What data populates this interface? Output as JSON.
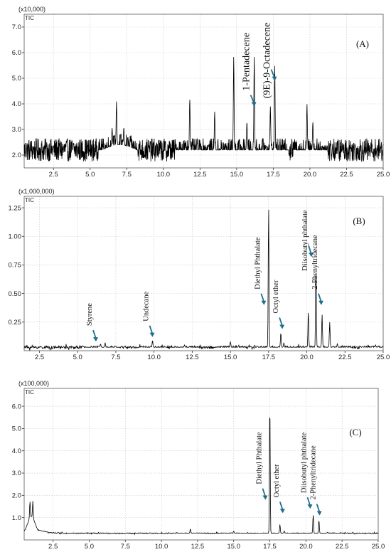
{
  "chart_data": [
    {
      "type": "line",
      "panel_label": "(A)",
      "multiplier": "(x10,000)",
      "series_label": "TIC",
      "xlim": [
        0.5,
        25.0
      ],
      "ylim": [
        1.5,
        7.5
      ],
      "x_ticks": [
        "2.5",
        "5.0",
        "7.5",
        "10.0",
        "12.5",
        "15.0",
        "17.5",
        "20.0",
        "22.5",
        "25.0"
      ],
      "y_ticks": [
        "2.0",
        "3.0",
        "4.0",
        "5.0",
        "6.0",
        "7.0"
      ],
      "baseline": 2.2,
      "noise": 0.45,
      "peaks": [
        {
          "x": 6.5,
          "y": 2.9
        },
        {
          "x": 6.8,
          "y": 3.9
        },
        {
          "x": 7.3,
          "y": 2.9
        },
        {
          "x": 11.8,
          "y": 4.2
        },
        {
          "x": 13.5,
          "y": 3.7
        },
        {
          "x": 14.8,
          "y": 5.85
        },
        {
          "x": 15.7,
          "y": 3.3
        },
        {
          "x": 16.2,
          "y": 5.85
        },
        {
          "x": 17.3,
          "y": 3.9
        },
        {
          "x": 17.6,
          "y": 5.5
        },
        {
          "x": 19.8,
          "y": 4.0
        },
        {
          "x": 20.2,
          "y": 3.3
        }
      ],
      "annotations": [
        {
          "text": "1-Pentadecene",
          "x": 16.2,
          "arrow_y": 3.9
        },
        {
          "text": "(9E)-9-Octadecene",
          "x": 17.6,
          "arrow_y": 4.9
        }
      ]
    },
    {
      "type": "line",
      "panel_label": "(B)",
      "multiplier": "(x1,000,000)",
      "series_label": "TIC",
      "xlim": [
        1.5,
        25.0
      ],
      "ylim": [
        0,
        1.35
      ],
      "x_ticks": [
        "2.5",
        "5.0",
        "7.5",
        "10.0",
        "12.5",
        "15.0",
        "17.5",
        "20.0",
        "22.5",
        "25.0"
      ],
      "y_ticks": [
        "0.25",
        "0.50",
        "0.75",
        "1.00",
        "1.25"
      ],
      "baseline": 0.03,
      "noise": 0.012,
      "peaks": [
        {
          "x": 6.5,
          "y": 0.06
        },
        {
          "x": 6.8,
          "y": 0.07
        },
        {
          "x": 9.9,
          "y": 0.09
        },
        {
          "x": 12.0,
          "y": 0.05
        },
        {
          "x": 15.0,
          "y": 0.08
        },
        {
          "x": 17.5,
          "y": 1.27
        },
        {
          "x": 18.3,
          "y": 0.16
        },
        {
          "x": 18.5,
          "y": 0.07
        },
        {
          "x": 20.1,
          "y": 0.35
        },
        {
          "x": 20.6,
          "y": 0.74
        },
        {
          "x": 21.0,
          "y": 0.32
        },
        {
          "x": 21.5,
          "y": 0.25
        },
        {
          "x": 22.0,
          "y": 0.06
        },
        {
          "x": 24.5,
          "y": 0.05
        }
      ],
      "annotations": [
        {
          "text": "Styrene",
          "x": 6.2,
          "arrow_y": 0.08
        },
        {
          "text": "Undecane",
          "x": 9.9,
          "arrow_y": 0.12
        },
        {
          "text": "Diethyl Phthalate",
          "x": 17.2,
          "arrow_y": 0.4
        },
        {
          "text": "Octyl ether",
          "x": 18.4,
          "arrow_y": 0.19
        },
        {
          "text": "Diisobutyl phthalate",
          "x": 20.3,
          "arrow_y": 0.82
        },
        {
          "text": "2-Phenyltridecane",
          "x": 20.95,
          "arrow_y": 0.4
        }
      ]
    },
    {
      "type": "line",
      "panel_label": "(C)",
      "multiplier": "(x100,000)",
      "series_label": "TIC",
      "xlim": [
        0.5,
        25.0
      ],
      "ylim": [
        0,
        6.8
      ],
      "x_ticks": [
        "2.5",
        "5.0",
        "7.5",
        "10.0",
        "12.5",
        "15.0",
        "17.5",
        "20.0",
        "22.5",
        "25.0"
      ],
      "y_ticks": [
        "1.0",
        "2.0",
        "3.0",
        "4.0",
        "5.0",
        "6.0"
      ],
      "baseline": 0.3,
      "noise": 0.02,
      "peaks": [
        {
          "x": 0.9,
          "y": 1.05
        },
        {
          "x": 1.1,
          "y": 1.05
        },
        {
          "x": 12.0,
          "y": 0.5
        },
        {
          "x": 15.0,
          "y": 0.4
        },
        {
          "x": 17.5,
          "y": 6.3
        },
        {
          "x": 18.2,
          "y": 0.7
        },
        {
          "x": 18.5,
          "y": 0.4
        },
        {
          "x": 20.5,
          "y": 1.15
        },
        {
          "x": 20.9,
          "y": 0.9
        },
        {
          "x": 21.5,
          "y": 0.35
        }
      ],
      "annotations": [
        {
          "text": "Diethyl Phthalate",
          "x": 17.2,
          "arrow_y": 1.8
        },
        {
          "text": "Octyl ether",
          "x": 18.4,
          "arrow_y": 1.2
        },
        {
          "text": "Diisobutyl phthalate",
          "x": 20.3,
          "arrow_y": 1.4
        },
        {
          "text": "2-Phenyltridecane",
          "x": 20.95,
          "arrow_y": 1.1
        }
      ]
    }
  ],
  "colors": {
    "trace": "#000000",
    "arrow": "#1f6f8b",
    "grid": "#c8c8c8"
  }
}
